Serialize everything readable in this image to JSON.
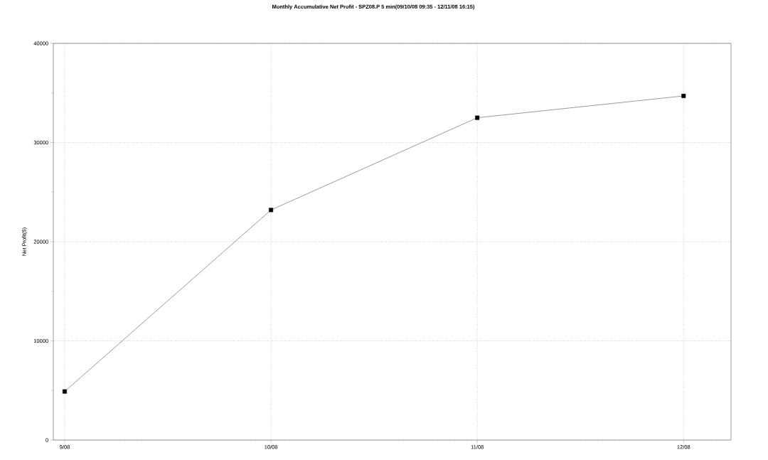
{
  "chart_data": {
    "type": "line",
    "title": "Monthly Accumulative Net Profit - SPZ08.P 5 min(09/10/08 09:35 - 12/11/08 16:15)",
    "ylabel": "Net Profit($)",
    "categories": [
      "9/08",
      "10/08",
      "11/08",
      "12/08"
    ],
    "series": [
      {
        "color": "#000000",
        "values": [
          4900,
          23200,
          32500,
          34700
        ]
      }
    ],
    "ylim": [
      0,
      40000
    ],
    "yticks": [
      0,
      10000,
      20000,
      30000,
      40000
    ],
    "grid": true,
    "marker": "square",
    "line_style": "solid"
  }
}
